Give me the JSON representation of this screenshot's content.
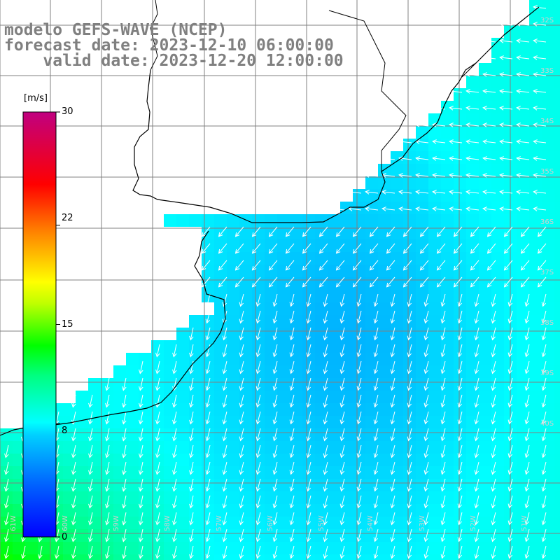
{
  "title": {
    "line1": "modelo GEFS-WAVE (NCEP)",
    "line2": "forecast date: 2023-12-10 06:00:00",
    "line3": "    valid date: 2023-12-20 12:00:00"
  },
  "colorbar": {
    "unit": "[m/s]",
    "tick_labels": [
      "30",
      "22",
      "15",
      "8",
      "0"
    ],
    "tick_values": [
      30,
      22,
      15,
      8,
      0
    ],
    "range": [
      0,
      30
    ],
    "colors": [
      "#0000ff",
      "#00b0ff",
      "#00ffff",
      "#00ff00",
      "#ffff00",
      "#ff8000",
      "#ff0000",
      "#c00080"
    ]
  },
  "map": {
    "variable": "wind speed and direction",
    "land_color": "#ffffff",
    "coast_color": "#000000",
    "grid_color": "#808080",
    "lat_labels": [
      "32S",
      "33S",
      "34S",
      "35S",
      "36S",
      "37S",
      "38S",
      "39S",
      "40S"
    ],
    "lon_labels": [
      "61W",
      "60W",
      "59W",
      "58W",
      "57W",
      "56W",
      "55W",
      "54W",
      "53W",
      "52W",
      "51W",
      "50W"
    ]
  }
}
